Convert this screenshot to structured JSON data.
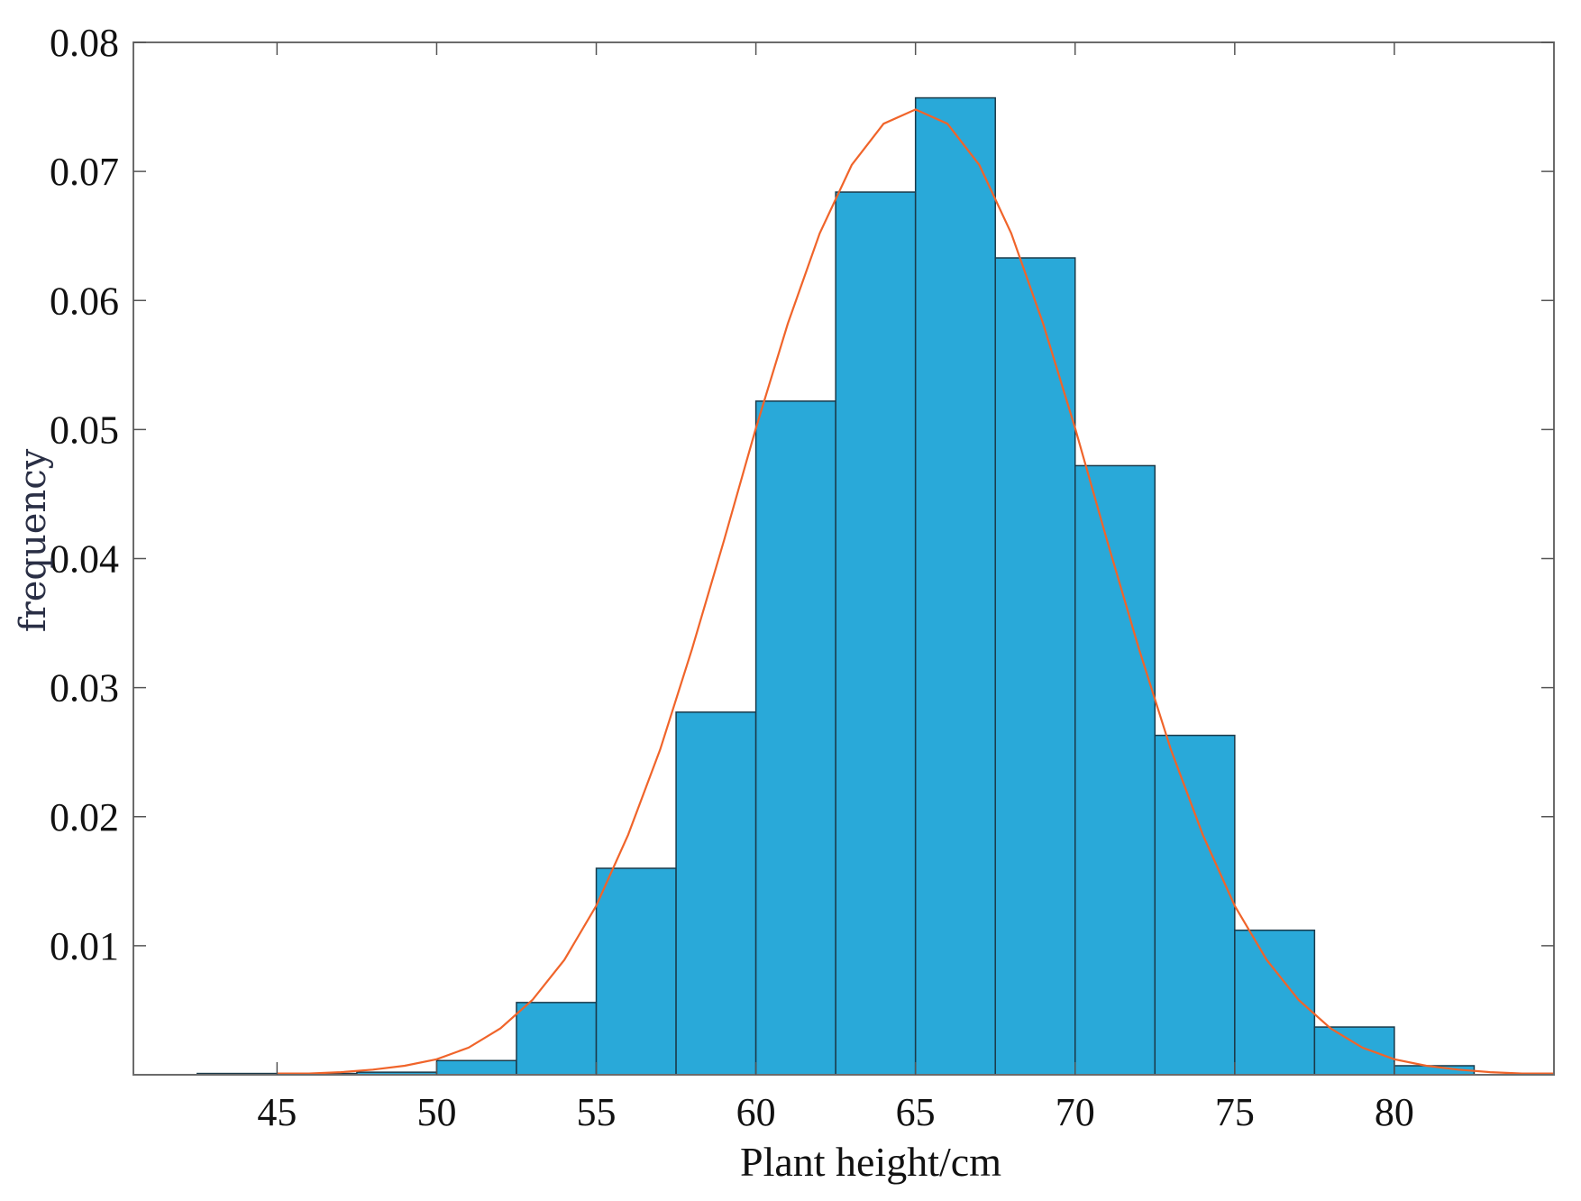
{
  "chart_data": {
    "type": "bar",
    "subtype": "histogram-with-fitted-curve",
    "title": "",
    "xlabel": "Plant height/cm",
    "ylabel": "frequency",
    "xlim": [
      40.5,
      85
    ],
    "ylim": [
      0,
      0.08
    ],
    "xticks": [
      "45",
      "50",
      "55",
      "60",
      "65",
      "70",
      "75",
      "80"
    ],
    "yticks": [
      "0.01",
      "0.02",
      "0.03",
      "0.04",
      "0.05",
      "0.06",
      "0.07",
      "0.08"
    ],
    "grid": false,
    "legend": "none",
    "bar_color": "#29a9d9",
    "bar_edge_color": "#1a3a4a",
    "curve_color": "#f0642a",
    "bins": [
      {
        "x0": 42.5,
        "x1": 45.0,
        "value": 0.0001
      },
      {
        "x0": 45.0,
        "x1": 47.5,
        "value": 0.0001
      },
      {
        "x0": 47.5,
        "x1": 50.0,
        "value": 0.0002
      },
      {
        "x0": 50.0,
        "x1": 52.5,
        "value": 0.0011
      },
      {
        "x0": 52.5,
        "x1": 55.0,
        "value": 0.0056
      },
      {
        "x0": 55.0,
        "x1": 57.5,
        "value": 0.016
      },
      {
        "x0": 57.5,
        "x1": 60.0,
        "value": 0.0281
      },
      {
        "x0": 60.0,
        "x1": 62.5,
        "value": 0.0522
      },
      {
        "x0": 62.5,
        "x1": 65.0,
        "value": 0.0684
      },
      {
        "x0": 65.0,
        "x1": 67.5,
        "value": 0.0757
      },
      {
        "x0": 67.5,
        "x1": 70.0,
        "value": 0.0633
      },
      {
        "x0": 70.0,
        "x1": 72.5,
        "value": 0.0472
      },
      {
        "x0": 72.5,
        "x1": 75.0,
        "value": 0.0263
      },
      {
        "x0": 75.0,
        "x1": 77.5,
        "value": 0.0112
      },
      {
        "x0": 77.5,
        "x1": 80.0,
        "value": 0.0037
      },
      {
        "x0": 80.0,
        "x1": 82.5,
        "value": 0.0007
      }
    ],
    "series": [
      {
        "type": "line",
        "x": [
          45,
          46,
          47,
          48,
          49,
          50,
          51,
          52,
          53,
          54,
          55,
          56,
          57,
          58,
          59,
          60,
          61,
          62,
          63,
          64,
          65,
          66,
          67,
          68,
          69,
          70,
          71,
          72,
          73,
          74,
          75,
          76,
          77,
          78,
          79,
          80,
          81,
          82,
          83,
          84,
          85
        ],
        "values": [
          0.0001,
          0.0001,
          0.0002,
          0.0004,
          0.0007,
          0.0012,
          0.0021,
          0.0036,
          0.0058,
          0.0089,
          0.0131,
          0.0186,
          0.0252,
          0.033,
          0.0414,
          0.0501,
          0.0582,
          0.0652,
          0.0705,
          0.0737,
          0.0748,
          0.0737,
          0.0705,
          0.0652,
          0.0582,
          0.0501,
          0.0414,
          0.033,
          0.0252,
          0.0186,
          0.0131,
          0.0089,
          0.0058,
          0.0036,
          0.0021,
          0.0012,
          0.0007,
          0.0004,
          0.0002,
          0.0001,
          0.0001
        ]
      }
    ]
  }
}
